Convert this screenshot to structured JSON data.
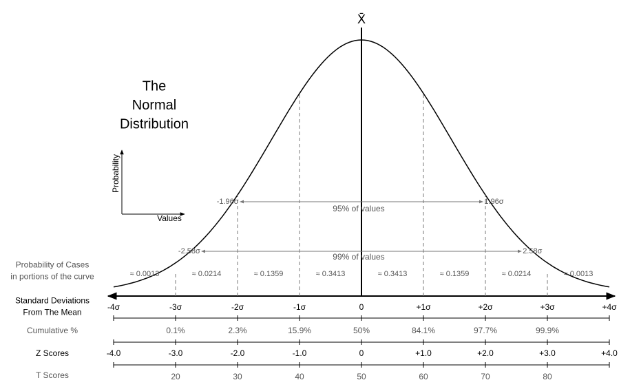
{
  "mean_symbol": "X̄",
  "title": {
    "lines": [
      "The",
      "Normal",
      "Distribution"
    ]
  },
  "axes_icon": {
    "y_label": "Probability",
    "x_label": "Values"
  },
  "intervals": [
    {
      "left": "-1.96σ",
      "right": "1.96σ",
      "label": "95% of values"
    },
    {
      "left": "-2.58σ",
      "right": "2.58σ",
      "label": "99% of values"
    }
  ],
  "rows": {
    "probability": {
      "label": [
        "Probability of Cases",
        "in portions of the curve"
      ],
      "values": [
        "≈ 0.0013",
        "≈ 0.0214",
        "≈ 0.1359",
        "≈ 0.3413",
        "≈ 0.3413",
        "≈ 0.1359",
        "≈ 0.0214",
        "≈ 0.0013"
      ]
    },
    "std_dev": {
      "label": [
        "Standard Deviations",
        "From The Mean"
      ],
      "values": [
        "-4σ",
        "-3σ",
        "-2σ",
        "-1σ",
        "0",
        "+1σ",
        "+2σ",
        "+3σ",
        "+4σ"
      ]
    },
    "cumulative": {
      "label": [
        "Cumulative %"
      ],
      "values": [
        "0.1%",
        "2.3%",
        "15.9%",
        "50%",
        "84.1%",
        "97.7%",
        "99.9%"
      ]
    },
    "z_scores": {
      "label": [
        "Z Scores"
      ],
      "values": [
        "-4.0",
        "-3.0",
        "-2.0",
        "-1.0",
        "0",
        "+1.0",
        "+2.0",
        "+3.0",
        "+4.0"
      ]
    },
    "t_scores": {
      "label": [
        "T Scores"
      ],
      "values": [
        "20",
        "30",
        "40",
        "50",
        "60",
        "70",
        "80"
      ]
    }
  }
}
